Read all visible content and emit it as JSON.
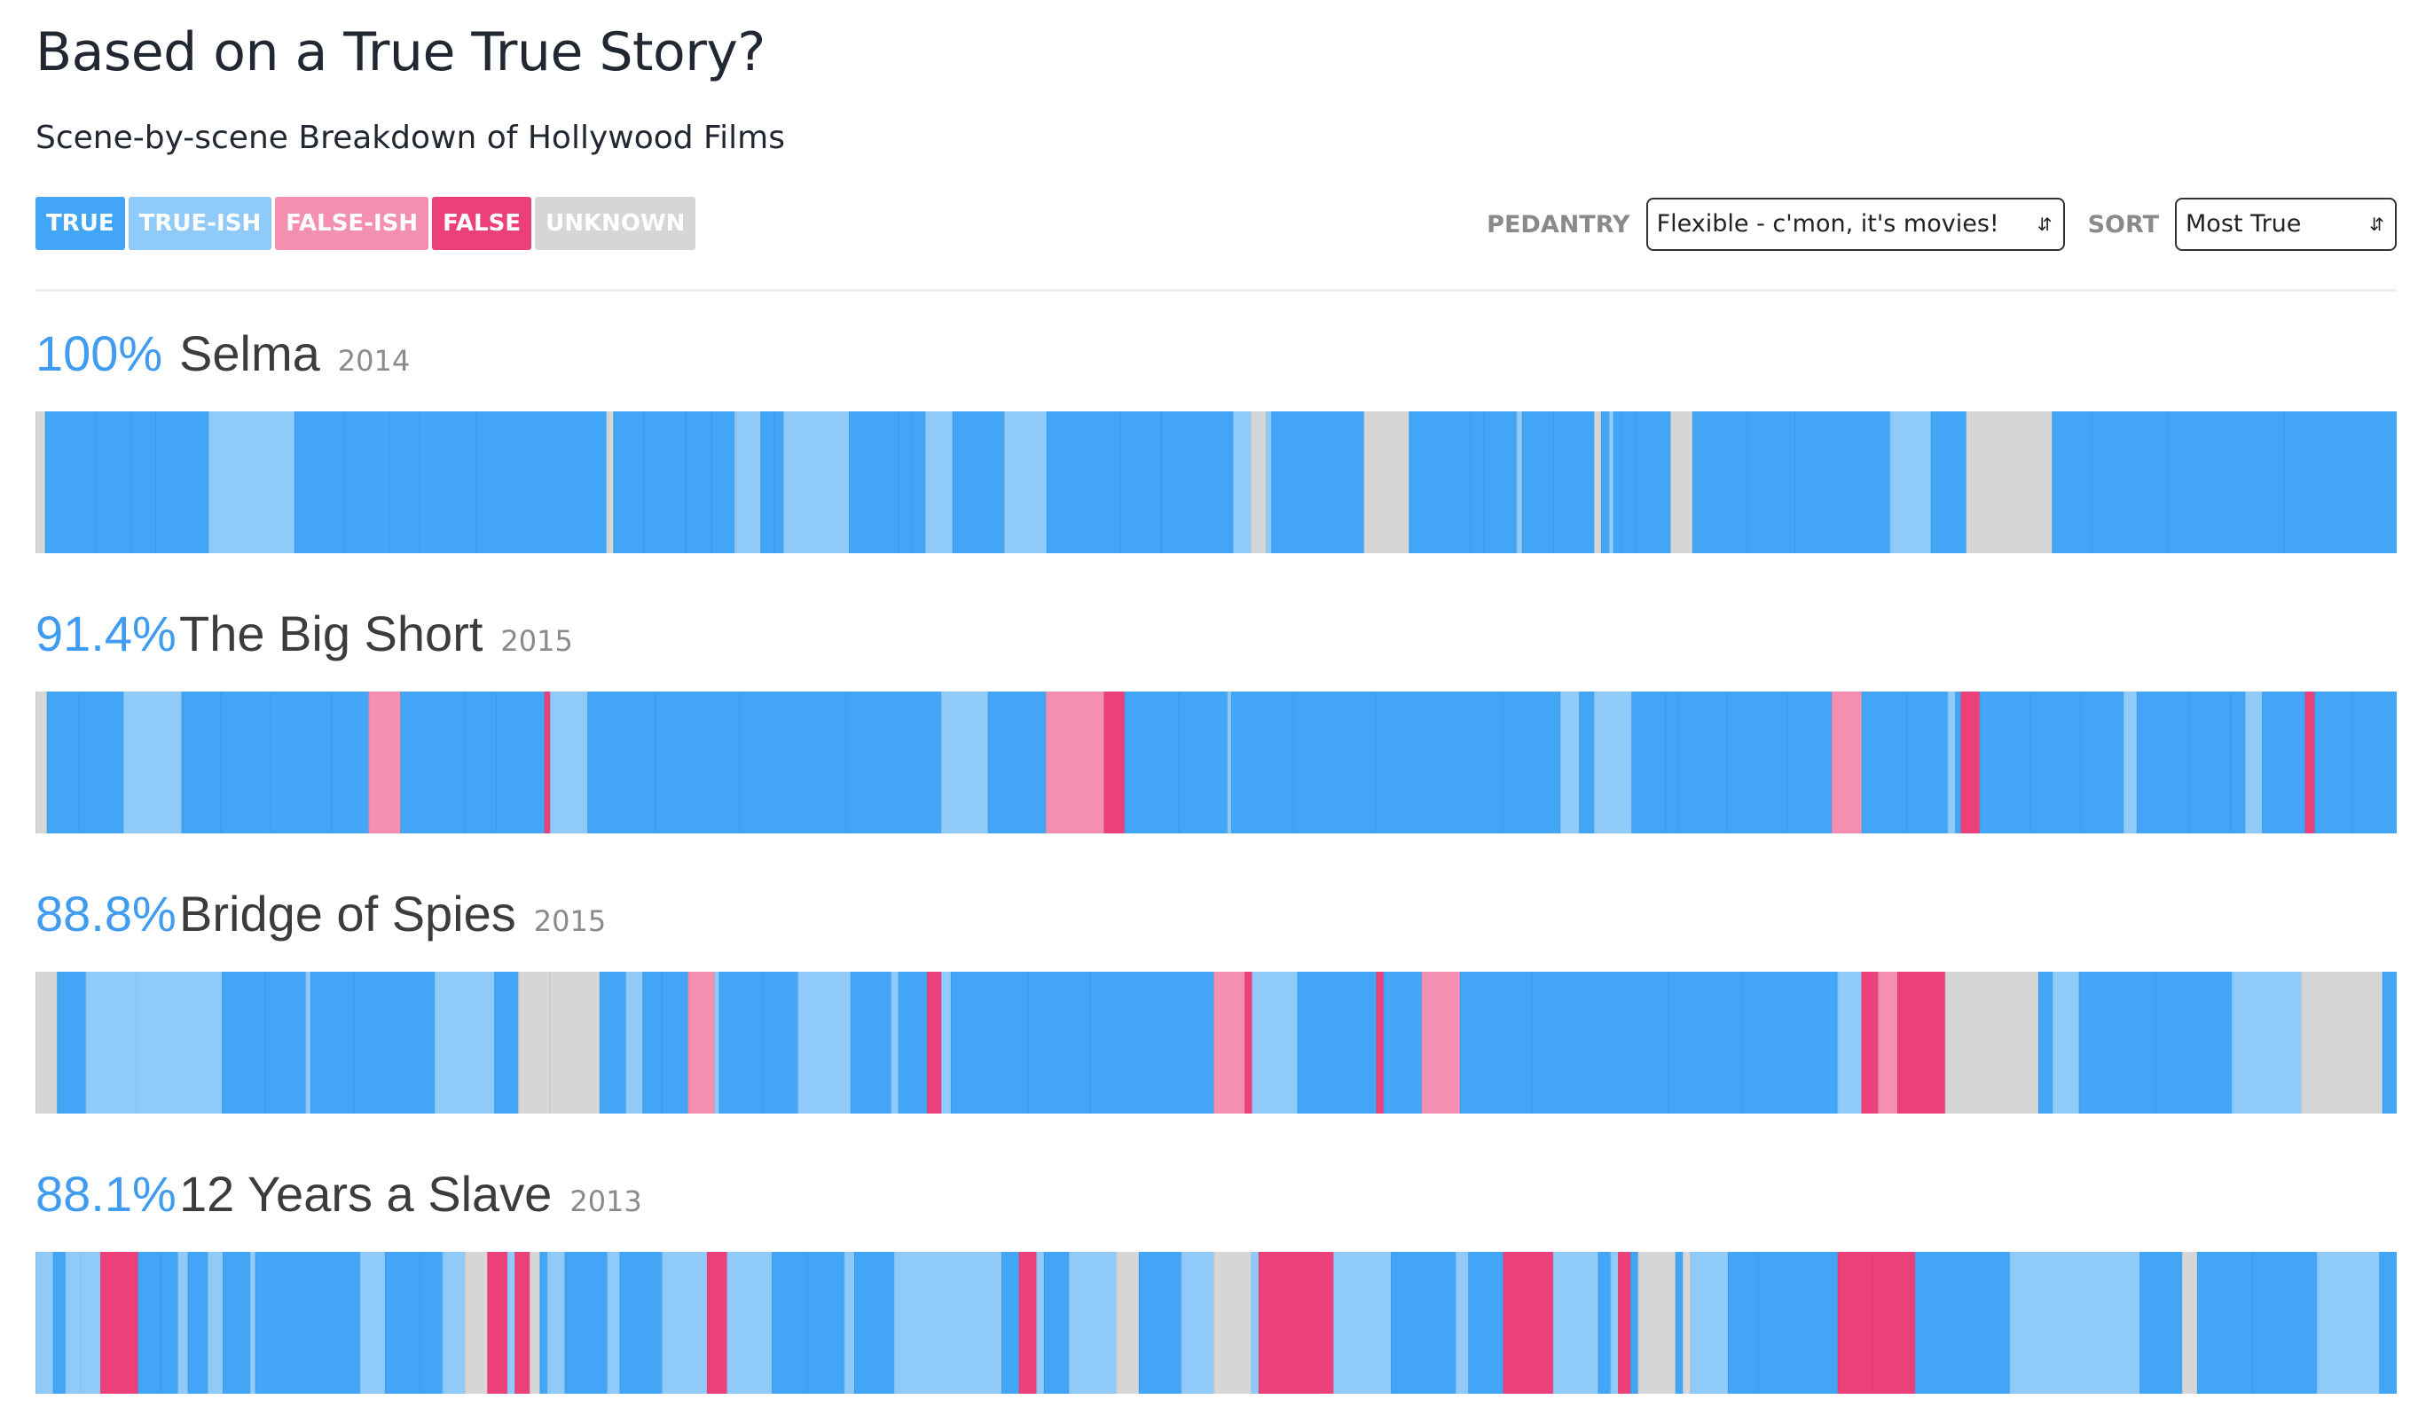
{
  "header": {
    "title": "Based on a True True Story?",
    "subtitle": "Scene-by-scene Breakdown of Hollywood Films"
  },
  "legend": [
    {
      "label": "TRUE",
      "color": "#42a5f5"
    },
    {
      "label": "TRUE-ISH",
      "color": "#90caf9"
    },
    {
      "label": "FALSE-ISH",
      "color": "#f48fb1"
    },
    {
      "label": "FALSE",
      "color": "#ec407a"
    },
    {
      "label": "UNKNOWN",
      "color": "#d6d6d6"
    }
  ],
  "controls": {
    "pedantry_label": "PEDANTRY",
    "pedantry_value": "Flexible - c'mon, it's movies!",
    "sort_label": "SORT",
    "sort_value": "Most True"
  },
  "colors": {
    "T": "#42a5f5",
    "TI": "#90caf9",
    "FI": "#f48fb1",
    "F": "#ec407a",
    "U": "#d6d6d6"
  },
  "chart_data": {
    "type": "bar",
    "orientation": "horizontal-stacked-segments",
    "films": [
      {
        "percent": "100%",
        "title": "Selma",
        "year": "2014",
        "segments": [
          [
            "U",
            0.7
          ],
          [
            "T",
            3.7
          ],
          [
            "T",
            2.6
          ],
          [
            "T",
            1.8
          ],
          [
            "T",
            3.9
          ],
          [
            "TI",
            6.3
          ],
          [
            "T",
            3.6
          ],
          [
            "T",
            3.4
          ],
          [
            "T",
            2.1
          ],
          [
            "T",
            4.2
          ],
          [
            "T",
            9.6
          ],
          [
            "U",
            0.5
          ],
          [
            "T",
            2.2
          ],
          [
            "T",
            3.1
          ],
          [
            "T",
            1.9
          ],
          [
            "T",
            1.7
          ],
          [
            "TI",
            1.9
          ],
          [
            "T",
            1.0
          ],
          [
            "T",
            0.7
          ],
          [
            "TI",
            4.8
          ],
          [
            "T",
            3.6
          ],
          [
            "T",
            1.0
          ],
          [
            "T",
            1.0
          ],
          [
            "TI",
            2.0
          ],
          [
            "T",
            3.8
          ],
          [
            "TI",
            3.1
          ],
          [
            "T",
            5.4
          ],
          [
            "T",
            3.0
          ],
          [
            "T",
            5.3
          ],
          [
            "TI",
            1.3
          ],
          [
            "U",
            1.1
          ],
          [
            "TI",
            0.4
          ],
          [
            "T",
            6.8
          ],
          [
            "U",
            3.3
          ],
          [
            "T",
            4.5
          ],
          [
            "T",
            1.0
          ],
          [
            "T",
            2.4
          ],
          [
            "TI",
            0.4
          ],
          [
            "T",
            2.3
          ],
          [
            "T",
            3.0
          ],
          [
            "U",
            0.5
          ],
          [
            "T",
            0.6
          ],
          [
            "TI",
            0.3
          ],
          [
            "T",
            0.6
          ],
          [
            "T",
            1.0
          ],
          [
            "T",
            2.6
          ],
          [
            "U",
            1.6
          ],
          [
            "T",
            4.0
          ],
          [
            "T",
            3.5
          ],
          [
            "T",
            7.0
          ],
          [
            "TI",
            3.0
          ],
          [
            "T",
            2.6
          ],
          [
            "U",
            6.3
          ],
          [
            "T",
            2.9
          ],
          [
            "T",
            5.6
          ],
          [
            "T",
            8.5
          ],
          [
            "T",
            8.3
          ]
        ]
      },
      {
        "percent": "91.4%",
        "title": "The Big Short",
        "year": "2015",
        "segments": [
          [
            "U",
            0.6
          ],
          [
            "T",
            1.7
          ],
          [
            "T",
            2.4
          ],
          [
            "TI",
            3.1
          ],
          [
            "T",
            2.1
          ],
          [
            "T",
            2.6
          ],
          [
            "T",
            3.3
          ],
          [
            "T",
            2.0
          ],
          [
            "FI",
            1.7
          ],
          [
            "T",
            3.4
          ],
          [
            "T",
            1.7
          ],
          [
            "T",
            2.6
          ],
          [
            "F",
            0.3
          ],
          [
            "TI",
            2.0
          ],
          [
            "T",
            3.6
          ],
          [
            "T",
            4.5
          ],
          [
            "T",
            5.7
          ],
          [
            "T",
            5.1
          ],
          [
            "TI",
            2.5
          ],
          [
            "T",
            3.1
          ],
          [
            "FI",
            3.1
          ],
          [
            "F",
            1.1
          ],
          [
            "T",
            2.9
          ],
          [
            "T",
            2.6
          ],
          [
            "TI",
            0.2
          ],
          [
            "T",
            3.3
          ],
          [
            "T",
            4.4
          ],
          [
            "T",
            6.8
          ],
          [
            "T",
            3.1
          ],
          [
            "TI",
            1.0
          ],
          [
            "T",
            0.8
          ],
          [
            "TI",
            2.0
          ],
          [
            "T",
            1.8
          ],
          [
            "T",
            0.7
          ],
          [
            "T",
            2.6
          ],
          [
            "T",
            3.2
          ],
          [
            "T",
            2.4
          ],
          [
            "FI",
            1.6
          ],
          [
            "T",
            2.4
          ],
          [
            "T",
            2.2
          ],
          [
            "TI",
            0.4
          ],
          [
            "T",
            0.3
          ],
          [
            "F",
            1.0
          ],
          [
            "T",
            2.7
          ],
          [
            "T",
            2.7
          ],
          [
            "T",
            2.3
          ],
          [
            "TI",
            0.7
          ],
          [
            "T",
            2.8
          ],
          [
            "T",
            2.2
          ],
          [
            "T",
            0.8
          ],
          [
            "TI",
            0.9
          ],
          [
            "T",
            2.3
          ],
          [
            "F",
            0.5
          ],
          [
            "T",
            2.0
          ],
          [
            "T",
            2.4
          ]
        ]
      },
      {
        "percent": "88.8%",
        "title": "Bridge of Spies",
        "year": "2015",
        "segments": [
          [
            "U",
            0.9
          ],
          [
            "T",
            1.2
          ],
          [
            "TI",
            2.1
          ],
          [
            "TI",
            3.6
          ],
          [
            "T",
            1.8
          ],
          [
            "T",
            1.7
          ],
          [
            "TI",
            0.2
          ],
          [
            "T",
            1.8
          ],
          [
            "T",
            3.4
          ],
          [
            "TI",
            2.5
          ],
          [
            "T",
            1.0
          ],
          [
            "U",
            1.3
          ],
          [
            "U",
            2.1
          ],
          [
            "T",
            1.1
          ],
          [
            "TI",
            0.7
          ],
          [
            "T",
            0.8
          ],
          [
            "T",
            1.1
          ],
          [
            "FI",
            1.1
          ],
          [
            "TI",
            0.2
          ],
          [
            "T",
            1.8
          ],
          [
            "T",
            1.5
          ],
          [
            "TI",
            2.2
          ],
          [
            "T",
            1.7
          ],
          [
            "TI",
            0.3
          ],
          [
            "T",
            1.2
          ],
          [
            "F",
            0.6
          ],
          [
            "TI",
            0.4
          ],
          [
            "T",
            3.2
          ],
          [
            "T",
            2.6
          ],
          [
            "T",
            5.2
          ],
          [
            "FI",
            1.3
          ],
          [
            "F",
            0.3
          ],
          [
            "TI",
            1.9
          ],
          [
            "T",
            3.3
          ],
          [
            "F",
            0.3
          ],
          [
            "T",
            1.6
          ],
          [
            "FI",
            1.6
          ],
          [
            "T",
            3.0
          ],
          [
            "T",
            5.7
          ],
          [
            "T",
            3.1
          ],
          [
            "T",
            4.0
          ],
          [
            "TI",
            1.0
          ],
          [
            "F",
            0.7
          ],
          [
            "FI",
            0.8
          ],
          [
            "F",
            2.0
          ],
          [
            "U",
            3.9
          ],
          [
            "T",
            0.6
          ],
          [
            "TI",
            1.1
          ],
          [
            "T",
            3.2
          ],
          [
            "T",
            3.2
          ],
          [
            "TI",
            2.9
          ],
          [
            "U",
            3.4
          ],
          [
            "T",
            0.6
          ]
        ]
      },
      {
        "percent": "88.1%",
        "title": "12 Years a Slave",
        "year": "2013",
        "segments": [
          [
            "TI",
            0.7
          ],
          [
            "T",
            0.5
          ],
          [
            "TI",
            0.6
          ],
          [
            "TI",
            0.8
          ],
          [
            "F",
            1.5
          ],
          [
            "T",
            0.9
          ],
          [
            "T",
            0.7
          ],
          [
            "TI",
            0.4
          ],
          [
            "T",
            0.8
          ],
          [
            "TI",
            0.6
          ],
          [
            "T",
            1.1
          ],
          [
            "TI",
            0.2
          ],
          [
            "T",
            4.2
          ],
          [
            "TI",
            1.0
          ],
          [
            "T",
            1.4
          ],
          [
            "T",
            0.9
          ],
          [
            "TI",
            0.9
          ],
          [
            "U",
            0.9
          ],
          [
            "F",
            0.8
          ],
          [
            "TI",
            0.3
          ],
          [
            "F",
            0.6
          ],
          [
            "U",
            0.4
          ],
          [
            "T",
            0.3
          ],
          [
            "TI",
            0.7
          ],
          [
            "T",
            1.7
          ],
          [
            "TI",
            0.5
          ],
          [
            "T",
            1.7
          ],
          [
            "TI",
            1.8
          ],
          [
            "F",
            0.8
          ],
          [
            "TI",
            1.8
          ],
          [
            "T",
            1.4
          ],
          [
            "T",
            1.5
          ],
          [
            "TI",
            0.4
          ],
          [
            "T",
            1.6
          ],
          [
            "TI",
            4.3
          ],
          [
            "T",
            0.7
          ],
          [
            "F",
            0.7
          ],
          [
            "TI",
            0.3
          ],
          [
            "T",
            1.0
          ],
          [
            "TI",
            1.9
          ],
          [
            "U",
            0.9
          ],
          [
            "T",
            1.7
          ],
          [
            "TI",
            1.3
          ],
          [
            "U",
            1.5
          ],
          [
            "TI",
            0.3
          ],
          [
            "F",
            3.0
          ],
          [
            "TI",
            2.3
          ],
          [
            "T",
            2.6
          ],
          [
            "TI",
            0.5
          ],
          [
            "T",
            1.4
          ],
          [
            "F",
            2.0
          ],
          [
            "TI",
            1.8
          ],
          [
            "T",
            0.5
          ],
          [
            "TI",
            0.3
          ],
          [
            "F",
            0.5
          ],
          [
            "T",
            0.3
          ],
          [
            "U",
            1.5
          ],
          [
            "T",
            0.3
          ],
          [
            "U",
            0.3
          ],
          [
            "TI",
            1.5
          ],
          [
            "T",
            1.2
          ],
          [
            "T",
            3.2
          ],
          [
            "F",
            1.4
          ],
          [
            "F",
            1.7
          ],
          [
            "T",
            3.8
          ],
          [
            "TI",
            5.2
          ],
          [
            "T",
            1.7
          ],
          [
            "U",
            0.6
          ],
          [
            "T",
            2.2
          ],
          [
            "T",
            2.6
          ],
          [
            "TI",
            2.5
          ],
          [
            "T",
            0.7
          ]
        ]
      }
    ]
  }
}
